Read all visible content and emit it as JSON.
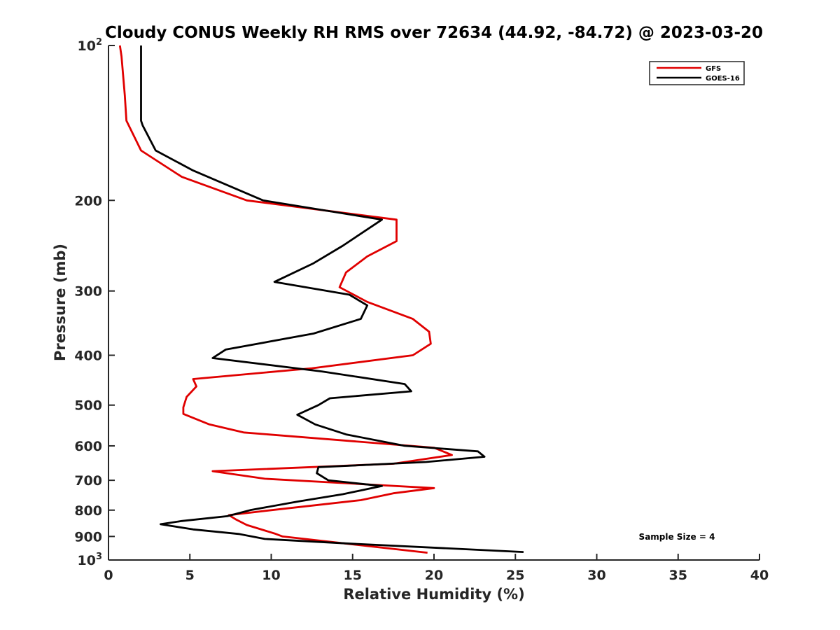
{
  "chart_data": {
    "type": "line",
    "title": "Cloudy CONUS Weekly RH RMS over 72634 (44.92, -84.72) @ 2023-03-20",
    "xlabel": "Relative Humidity (%)",
    "ylabel": "Pressure (mb)",
    "xlim": [
      0,
      40
    ],
    "ylim": [
      100,
      1000
    ],
    "y_scale": "log",
    "y_reversed": true,
    "grid": false,
    "legend_position": "top-right",
    "x_ticks": [
      {
        "value": 0,
        "label": "0"
      },
      {
        "value": 5,
        "label": "5"
      },
      {
        "value": 10,
        "label": "10"
      },
      {
        "value": 15,
        "label": "15"
      },
      {
        "value": 20,
        "label": "20"
      },
      {
        "value": 25,
        "label": "25"
      },
      {
        "value": 30,
        "label": "30"
      },
      {
        "value": 35,
        "label": "35"
      },
      {
        "value": 40,
        "label": "40"
      }
    ],
    "y_ticks": [
      {
        "value": 100,
        "label": "10",
        "sup": "2"
      },
      {
        "value": 200,
        "label": "200",
        "sup": ""
      },
      {
        "value": 300,
        "label": "300",
        "sup": ""
      },
      {
        "value": 400,
        "label": "400",
        "sup": ""
      },
      {
        "value": 500,
        "label": "500",
        "sup": ""
      },
      {
        "value": 600,
        "label": "600",
        "sup": ""
      },
      {
        "value": 700,
        "label": "700",
        "sup": ""
      },
      {
        "value": 800,
        "label": "800",
        "sup": ""
      },
      {
        "value": 900,
        "label": "900",
        "sup": ""
      },
      {
        "value": 1000,
        "label": "10",
        "sup": "3"
      }
    ],
    "series": [
      {
        "name": "GFS",
        "color": "#e00000",
        "points": [
          [
            0.7,
            100
          ],
          [
            0.8,
            105
          ],
          [
            1.0,
            125
          ],
          [
            1.1,
            140
          ],
          [
            2.0,
            160
          ],
          [
            4.5,
            180
          ],
          [
            8.5,
            200
          ],
          [
            17.7,
            218
          ],
          [
            17.7,
            240
          ],
          [
            15.9,
            257
          ],
          [
            14.6,
            276
          ],
          [
            14.2,
            295
          ],
          [
            15.9,
            315
          ],
          [
            18.7,
            340
          ],
          [
            19.7,
            360
          ],
          [
            19.8,
            380
          ],
          [
            18.7,
            400
          ],
          [
            12.5,
            424
          ],
          [
            5.2,
            445
          ],
          [
            5.4,
            460
          ],
          [
            4.8,
            482
          ],
          [
            4.6,
            505
          ],
          [
            4.6,
            520
          ],
          [
            6.2,
            545
          ],
          [
            8.3,
            565
          ],
          [
            20.0,
            605
          ],
          [
            21.1,
            625
          ],
          [
            17.5,
            650
          ],
          [
            6.4,
            672
          ],
          [
            9.6,
            695
          ],
          [
            20.0,
            725
          ],
          [
            17.5,
            742
          ],
          [
            15.5,
            765
          ],
          [
            10.0,
            800
          ],
          [
            7.4,
            818
          ],
          [
            7.8,
            833
          ],
          [
            8.5,
            855
          ],
          [
            10.2,
            888
          ],
          [
            10.7,
            900
          ],
          [
            19.6,
            968
          ]
        ]
      },
      {
        "name": "GOES-16",
        "color": "#000000",
        "points": [
          [
            2.0,
            100
          ],
          [
            2.0,
            115
          ],
          [
            2.0,
            140
          ],
          [
            2.1,
            143
          ],
          [
            2.9,
            160
          ],
          [
            5.2,
            175
          ],
          [
            9.5,
            200
          ],
          [
            16.8,
            218
          ],
          [
            14.4,
            245
          ],
          [
            12.6,
            265
          ],
          [
            10.2,
            288
          ],
          [
            14.8,
            305
          ],
          [
            15.9,
            320
          ],
          [
            15.5,
            340
          ],
          [
            12.6,
            363
          ],
          [
            7.2,
            390
          ],
          [
            6.4,
            405
          ],
          [
            13.1,
            430
          ],
          [
            18.2,
            455
          ],
          [
            18.6,
            470
          ],
          [
            13.6,
            485
          ],
          [
            12.9,
            500
          ],
          [
            11.6,
            522
          ],
          [
            12.7,
            545
          ],
          [
            14.6,
            570
          ],
          [
            18.2,
            600
          ],
          [
            22.7,
            615
          ],
          [
            23.1,
            630
          ],
          [
            19.5,
            645
          ],
          [
            12.9,
            660
          ],
          [
            12.8,
            678
          ],
          [
            13.5,
            700
          ],
          [
            16.8,
            718
          ],
          [
            14.4,
            745
          ],
          [
            11.6,
            770
          ],
          [
            8.7,
            800
          ],
          [
            7.3,
            822
          ],
          [
            4.5,
            840
          ],
          [
            3.2,
            852
          ],
          [
            5.2,
            872
          ],
          [
            8.0,
            890
          ],
          [
            9.6,
            910
          ],
          [
            15.0,
            930
          ],
          [
            25.5,
            965
          ]
        ]
      }
    ],
    "legend": [
      {
        "label": "GFS",
        "color": "#e00000"
      },
      {
        "label": "GOES-16",
        "color": "#000000"
      }
    ],
    "annotations": [
      {
        "text": "Sample Size = 4"
      }
    ]
  }
}
